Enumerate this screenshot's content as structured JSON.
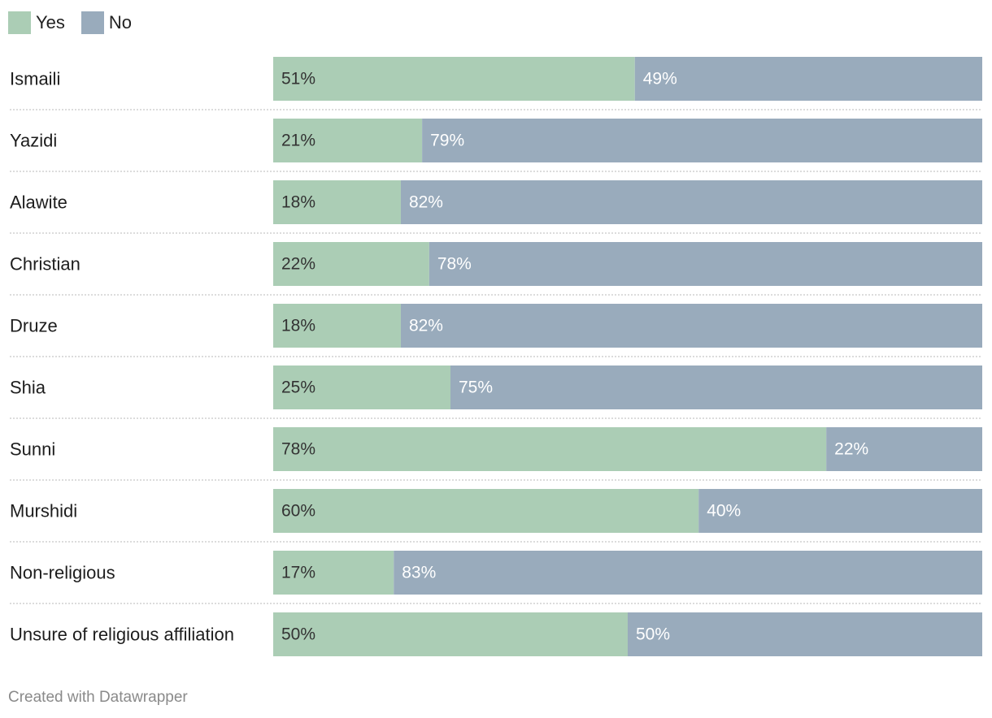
{
  "legend": {
    "yes_label": "Yes",
    "no_label": "No"
  },
  "footer": {
    "credit": "Created with Datawrapper"
  },
  "colors": {
    "yes": "#abcdb5",
    "no": "#99abbc",
    "yes_text": "#333333",
    "no_text": "#ffffff",
    "label_text": "#1d1d1d",
    "separator": "#c8c8c8"
  },
  "chart_data": {
    "type": "bar",
    "orientation": "horizontal",
    "stacked": "percent",
    "categories": [
      "Ismaili",
      "Yazidi",
      "Alawite",
      "Christian",
      "Druze",
      "Shia",
      "Sunni",
      "Murshidi",
      "Non-religious",
      "Unsure of religious affiliation"
    ],
    "series": [
      {
        "name": "Yes",
        "values": [
          51,
          21,
          18,
          22,
          18,
          25,
          78,
          60,
          17,
          50
        ],
        "labels": [
          "51%",
          "21%",
          "18%",
          "22%",
          "18%",
          "25%",
          "78%",
          "60%",
          "17%",
          "50%"
        ]
      },
      {
        "name": "No",
        "values": [
          49,
          79,
          82,
          78,
          82,
          75,
          22,
          40,
          83,
          50
        ],
        "labels": [
          "49%",
          "79%",
          "82%",
          "78%",
          "82%",
          "75%",
          "22%",
          "40%",
          "83%",
          "50%"
        ]
      }
    ],
    "xlim": [
      0,
      100
    ],
    "legend_position": "top-left"
  }
}
